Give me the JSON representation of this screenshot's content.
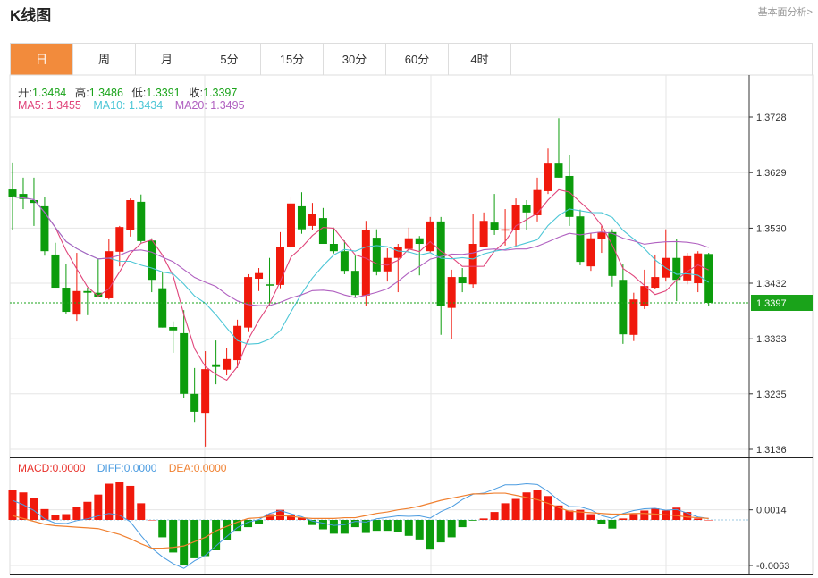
{
  "header": {
    "title": "K线图",
    "link": "基本面分析>"
  },
  "tabs": [
    {
      "label": "日",
      "active": true
    },
    {
      "label": "周"
    },
    {
      "label": "月"
    },
    {
      "label": "5分"
    },
    {
      "label": "15分"
    },
    {
      "label": "30分"
    },
    {
      "label": "60分"
    },
    {
      "label": "4时"
    }
  ],
  "ohlc_info": {
    "open_label": "开:",
    "open": "1.3484",
    "high_label": "高:",
    "high": "1.3486",
    "low_label": "低:",
    "low": "1.3391",
    "close_label": "收:",
    "close": "1.3397"
  },
  "ma_info": {
    "ma5": "MA5: 1.3455",
    "ma10": "MA10: 1.3434",
    "ma20": "MA20: 1.3495"
  },
  "macd_info": {
    "macd": "MACD:0.0000",
    "diff": "DIFF:0.0000",
    "dea": "DEA:0.0000"
  },
  "price_axis": {
    "ticks": [
      "1.3728",
      "1.3629",
      "1.3530",
      "1.3432",
      "1.3333",
      "1.3235",
      "1.3136"
    ],
    "current": "1.3397"
  },
  "macd_axis": {
    "ticks": [
      "0.0014",
      "-0.0063"
    ]
  },
  "colors": {
    "up": "#f0190c",
    "down": "#0c9c0c",
    "ma5": "#e0457b",
    "ma10": "#4cc6d6",
    "ma20": "#b060c0",
    "diff": "#4a9be0",
    "dea": "#f08030",
    "accent": "#f28b3c",
    "current": "#1aa31a"
  },
  "chart_data": {
    "type": "candlestick",
    "candles": [
      [
        1.3599,
        1.3647,
        1.3526,
        1.3586
      ],
      [
        1.3591,
        1.362,
        1.3564,
        1.3582
      ],
      [
        1.358,
        1.362,
        1.3534,
        1.3575
      ],
      [
        1.3569,
        1.3585,
        1.3481,
        1.3489
      ],
      [
        1.3483,
        1.3504,
        1.3424,
        1.3424
      ],
      [
        1.3424,
        1.3467,
        1.3378,
        1.3381
      ],
      [
        1.3376,
        1.3486,
        1.3365,
        1.3418
      ],
      [
        1.3418,
        1.3424,
        1.3375,
        1.3415
      ],
      [
        1.3415,
        1.3475,
        1.3407,
        1.3407
      ],
      [
        1.3405,
        1.351,
        1.3403,
        1.3489
      ],
      [
        1.3488,
        1.3534,
        1.3462,
        1.3532
      ],
      [
        1.3526,
        1.3583,
        1.3515,
        1.358
      ],
      [
        1.3577,
        1.359,
        1.3504,
        1.3507
      ],
      [
        1.3508,
        1.3512,
        1.3416,
        1.3438
      ],
      [
        1.3423,
        1.3451,
        1.3353,
        1.3353
      ],
      [
        1.3354,
        1.3364,
        1.3308,
        1.3348
      ],
      [
        1.3343,
        1.3384,
        1.3228,
        1.3235
      ],
      [
        1.3235,
        1.3281,
        1.3185,
        1.3203
      ],
      [
        1.3201,
        1.3311,
        1.3141,
        1.3279
      ],
      [
        1.3286,
        1.333,
        1.3252,
        1.3283
      ],
      [
        1.3278,
        1.3316,
        1.3268,
        1.3297
      ],
      [
        1.3295,
        1.3367,
        1.3281,
        1.3356
      ],
      [
        1.3353,
        1.3448,
        1.3345,
        1.3443
      ],
      [
        1.344,
        1.3459,
        1.3418,
        1.345
      ],
      [
        1.343,
        1.3477,
        1.3392,
        1.3429
      ],
      [
        1.3429,
        1.3523,
        1.3423,
        1.3497
      ],
      [
        1.3496,
        1.3585,
        1.3494,
        1.3574
      ],
      [
        1.3569,
        1.3594,
        1.352,
        1.3528
      ],
      [
        1.3534,
        1.3575,
        1.3526,
        1.3556
      ],
      [
        1.3548,
        1.3566,
        1.3502,
        1.3502
      ],
      [
        1.3502,
        1.3531,
        1.3485,
        1.3489
      ],
      [
        1.3489,
        1.3508,
        1.3448,
        1.3454
      ],
      [
        1.3454,
        1.3481,
        1.3407,
        1.3411
      ],
      [
        1.341,
        1.3543,
        1.3391,
        1.3526
      ],
      [
        1.3513,
        1.3528,
        1.3446,
        1.3453
      ],
      [
        1.3453,
        1.3494,
        1.3435,
        1.3477
      ],
      [
        1.3477,
        1.3502,
        1.3416,
        1.3497
      ],
      [
        1.3493,
        1.3531,
        1.3486,
        1.3512
      ],
      [
        1.3512,
        1.3516,
        1.3446,
        1.3502
      ],
      [
        1.3489,
        1.355,
        1.3486,
        1.3542
      ],
      [
        1.3542,
        1.355,
        1.334,
        1.3391
      ],
      [
        1.3388,
        1.3456,
        1.3332,
        1.3443
      ],
      [
        1.3443,
        1.3459,
        1.3416,
        1.3432
      ],
      [
        1.343,
        1.3555,
        1.3424,
        1.3502
      ],
      [
        1.3497,
        1.3558,
        1.3496,
        1.3543
      ],
      [
        1.354,
        1.3591,
        1.3518,
        1.3526
      ],
      [
        1.3526,
        1.3564,
        1.3499,
        1.3528
      ],
      [
        1.3526,
        1.3583,
        1.3496,
        1.3572
      ],
      [
        1.3572,
        1.358,
        1.3526,
        1.3558
      ],
      [
        1.3553,
        1.362,
        1.3542,
        1.3598
      ],
      [
        1.3596,
        1.3672,
        1.3591,
        1.3645
      ],
      [
        1.3645,
        1.3726,
        1.362,
        1.362
      ],
      [
        1.3623,
        1.3661,
        1.3534,
        1.355
      ],
      [
        1.3551,
        1.3563,
        1.3464,
        1.347
      ],
      [
        1.3462,
        1.3521,
        1.3454,
        1.3512
      ],
      [
        1.351,
        1.3534,
        1.3486,
        1.3523
      ],
      [
        1.3523,
        1.3528,
        1.3426,
        1.3445
      ],
      [
        1.3438,
        1.3467,
        1.3324,
        1.3341
      ],
      [
        1.334,
        1.3415,
        1.3329,
        1.3403
      ],
      [
        1.3391,
        1.3456,
        1.3386,
        1.3427
      ],
      [
        1.3424,
        1.3483,
        1.3421,
        1.3443
      ],
      [
        1.3442,
        1.3528,
        1.3435,
        1.3477
      ],
      [
        1.3477,
        1.351,
        1.34,
        1.3438
      ],
      [
        1.3437,
        1.3486,
        1.343,
        1.348
      ],
      [
        1.3432,
        1.3489,
        1.3416,
        1.3485
      ],
      [
        1.3484,
        1.3486,
        1.3391,
        1.3397
      ]
    ],
    "candle_format": [
      "open",
      "high",
      "low",
      "close"
    ],
    "ma_periods": [
      5,
      10,
      20
    ],
    "price_range": [
      1.3136,
      1.3728
    ],
    "macd": [
      0.0042,
      0.0038,
      0.003,
      0.0015,
      0.0007,
      0.0008,
      0.0018,
      0.0025,
      0.0035,
      0.005,
      0.0053,
      0.0047,
      0.0023,
      0.0,
      -0.0024,
      -0.0045,
      -0.0062,
      -0.0053,
      -0.005,
      -0.0042,
      -0.0028,
      -0.0015,
      -0.001,
      -0.0005,
      0.0008,
      0.0014,
      0.0007,
      0.0003,
      -0.0007,
      -0.0013,
      -0.0019,
      -0.0019,
      -0.001,
      -0.0018,
      -0.0015,
      -0.0015,
      -0.0017,
      -0.0022,
      -0.0027,
      -0.0041,
      -0.0031,
      -0.0024,
      -0.001,
      -0.0001,
      0.0002,
      0.0011,
      0.0023,
      0.0029,
      0.0038,
      0.0042,
      0.0033,
      0.002,
      0.0013,
      0.0014,
      0.0008,
      -0.0006,
      -0.0012,
      0.0002,
      0.0008,
      0.0013,
      0.0016,
      0.0013,
      0.0017,
      0.0011,
      0.0002,
      0.0
    ],
    "dea": [
      0.0006,
      0.0002,
      -0.0002,
      -0.0006,
      -0.0008,
      -0.0009,
      -0.001,
      -0.0011,
      -0.0012,
      -0.0016,
      -0.002,
      -0.0026,
      -0.0033,
      -0.0039,
      -0.0039,
      -0.0038,
      -0.0036,
      -0.003,
      -0.0024,
      -0.0015,
      -0.0009,
      -0.0003,
      0.0002,
      0.0003,
      0.0005,
      0.0006,
      0.0005,
      0.0003,
      0.0002,
      0.0002,
      0.0002,
      0.0003,
      0.0003,
      0.0006,
      0.0009,
      0.0011,
      0.0014,
      0.0016,
      0.0019,
      0.0023,
      0.0027,
      0.003,
      0.0033,
      0.0036,
      0.0036,
      0.0037,
      0.0037,
      0.0034,
      0.0031,
      0.0028,
      0.0023,
      0.0017,
      0.0012,
      0.0011,
      0.001,
      0.0009,
      0.0008,
      0.0008,
      0.0009,
      0.0009,
      0.0008,
      0.0007,
      0.0006,
      0.0004,
      0.0003,
      0.0002
    ],
    "macd_range": [
      -0.0063,
      0.0014
    ]
  }
}
